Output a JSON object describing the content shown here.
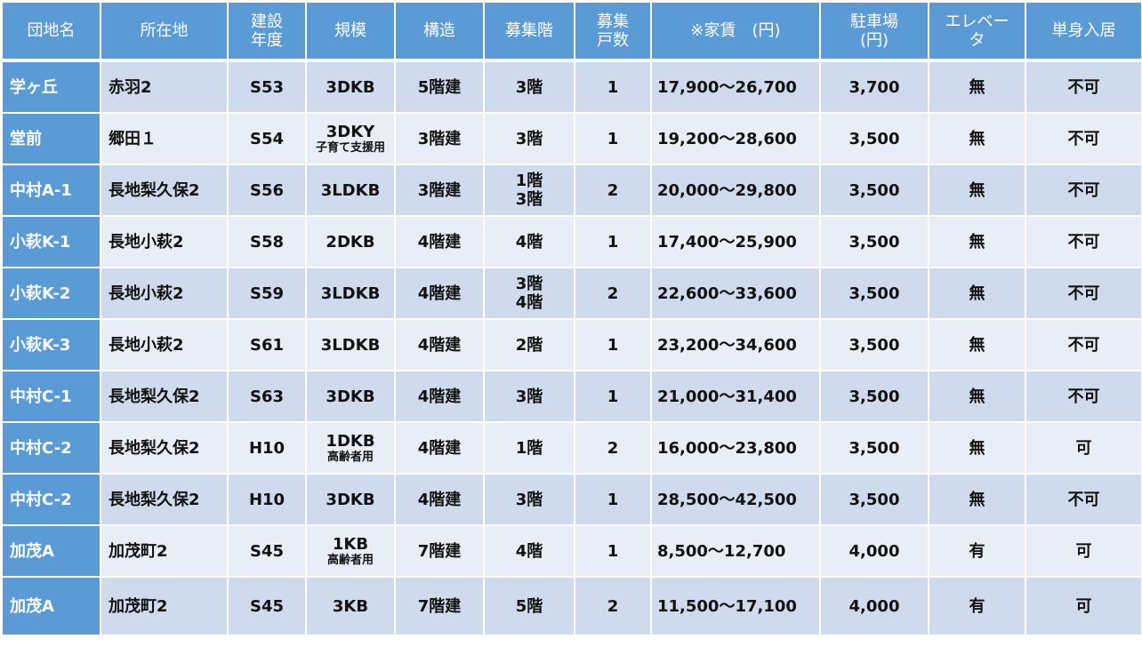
{
  "table": {
    "headers": {
      "name": "団地名",
      "location": "所在地",
      "year": [
        "建設",
        "年度"
      ],
      "size": "規模",
      "structure": "構造",
      "floor": "募集階",
      "units": [
        "募集",
        "戸数"
      ],
      "rent": "※家賃　(円)",
      "parking": [
        "駐車場",
        "(円)"
      ],
      "elevator": [
        "エレベー",
        "タ"
      ],
      "single": "単身入居"
    },
    "colors": {
      "header_bg": "#5b9bd5",
      "row_dark": "#cfdbec",
      "row_light": "#e9edf5",
      "border": "#ffffff"
    },
    "rows": [
      {
        "name": "学ヶ丘",
        "location": "赤羽2",
        "year": "S53",
        "size": "3DKB",
        "size_note": "",
        "structure": "5階建",
        "floors": [
          "3階"
        ],
        "units": "1",
        "rent": "17,900～26,700",
        "parking": "3,700",
        "elevator": "無",
        "single": "不可"
      },
      {
        "name": "堂前",
        "location": "郷田１",
        "year": "S54",
        "size": "3DKY",
        "size_note": "子育て支援用",
        "structure": "3階建",
        "floors": [
          "3階"
        ],
        "units": "1",
        "rent": "19,200～28,600",
        "parking": "3,500",
        "elevator": "無",
        "single": "不可"
      },
      {
        "name": "中村A-1",
        "location": "長地梨久保2",
        "year": "S56",
        "size": "3LDKB",
        "size_note": "",
        "structure": "3階建",
        "floors": [
          "1階",
          "3階"
        ],
        "units": "2",
        "rent": "20,000～29,800",
        "parking": "3,500",
        "elevator": "無",
        "single": "不可"
      },
      {
        "name": "小萩K-1",
        "location": "長地小萩2",
        "year": "S58",
        "size": "2DKB",
        "size_note": "",
        "structure": "4階建",
        "floors": [
          "4階"
        ],
        "units": "1",
        "rent": "17,400～25,900",
        "parking": "3,500",
        "elevator": "無",
        "single": "不可"
      },
      {
        "name": "小萩K-2",
        "location": "長地小萩2",
        "year": "S59",
        "size": "3LDKB",
        "size_note": "",
        "structure": "4階建",
        "floors": [
          "3階",
          "4階"
        ],
        "units": "2",
        "rent": "22,600～33,600",
        "parking": "3,500",
        "elevator": "無",
        "single": "不可"
      },
      {
        "name": "小萩K-3",
        "location": "長地小萩2",
        "year": "S61",
        "size": "3LDKB",
        "size_note": "",
        "structure": "4階建",
        "floors": [
          "2階"
        ],
        "units": "1",
        "rent": "23,200～34,600",
        "parking": "3,500",
        "elevator": "無",
        "single": "不可"
      },
      {
        "name": "中村C-1",
        "location": "長地梨久保2",
        "year": "S63",
        "size": "3DKB",
        "size_note": "",
        "structure": "4階建",
        "floors": [
          "3階"
        ],
        "units": "1",
        "rent": "21,000～31,400",
        "parking": "3,500",
        "elevator": "無",
        "single": "不可"
      },
      {
        "name": "中村C-2",
        "location": "長地梨久保2",
        "year": "H10",
        "size": "1DKB",
        "size_note": "高齢者用",
        "structure": "4階建",
        "floors": [
          "1階"
        ],
        "units": "2",
        "rent": "16,000～23,800",
        "parking": "3,500",
        "elevator": "無",
        "single": "可"
      },
      {
        "name": "中村C-2",
        "location": "長地梨久保2",
        "year": "H10",
        "size": "3DKB",
        "size_note": "",
        "structure": "4階建",
        "floors": [
          "3階"
        ],
        "units": "1",
        "rent": "28,500～42,500",
        "parking": "3,500",
        "elevator": "無",
        "single": "不可"
      },
      {
        "name": "加茂A",
        "location": "加茂町2",
        "year": "S45",
        "size": "1KB",
        "size_note": "高齢者用",
        "structure": "7階建",
        "floors": [
          "4階"
        ],
        "units": "1",
        "rent": "8,500～12,700",
        "parking": "4,000",
        "elevator": "有",
        "single": "可"
      },
      {
        "name": "加茂A",
        "location": "加茂町2",
        "year": "S45",
        "size": "3KB",
        "size_note": "",
        "structure": "7階建",
        "floors": [
          "5階"
        ],
        "units": "2",
        "rent": "11,500～17,100",
        "parking": "4,000",
        "elevator": "有",
        "single": "可"
      }
    ]
  }
}
